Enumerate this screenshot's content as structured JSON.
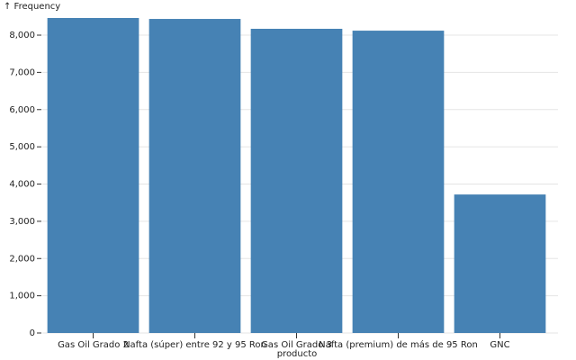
{
  "chart_data": {
    "type": "bar",
    "y_label": "↑ Frequency",
    "x_label": "producto",
    "categories": [
      "Gas Oil Grado 2",
      "Nafta (súper) entre 92 y 95 Ron",
      "Gas Oil Grado 3",
      "Nafta (premium) de más de 95 Ron",
      "GNC"
    ],
    "values": [
      8460,
      8435,
      8170,
      8120,
      3720
    ],
    "color": "#4682b4",
    "ylim": [
      0,
      8460
    ],
    "yticks": [
      0,
      {
        "value": 1000,
        "label": "1,000"
      },
      {
        "value": 2000,
        "label": "2,000"
      },
      {
        "value": 3000,
        "label": "3,000"
      },
      {
        "value": 4000,
        "label": "4,000"
      },
      {
        "value": 5000,
        "label": "5,000"
      },
      {
        "value": 6000,
        "label": "6,000"
      },
      {
        "value": 7000,
        "label": "7,000"
      },
      {
        "value": 8000,
        "label": "8,000"
      }
    ],
    "grid": true
  }
}
